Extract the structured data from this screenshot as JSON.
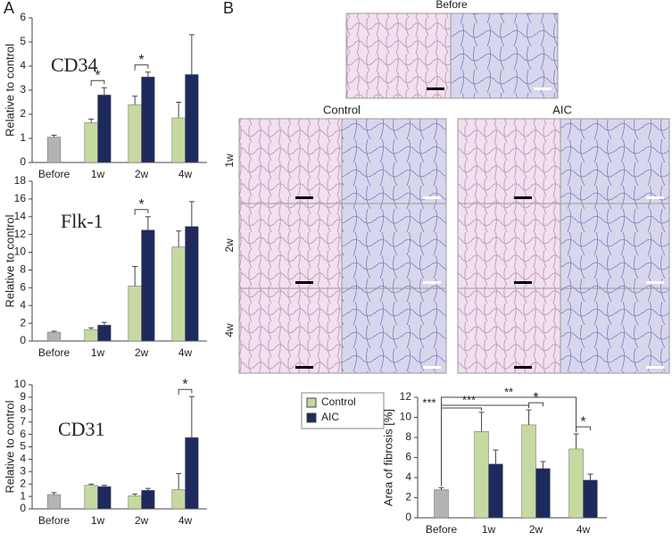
{
  "panel_labels": [
    "A",
    "B"
  ],
  "image_labels": {
    "before": "Before",
    "control": "Control",
    "aic": "AIC",
    "weeks": [
      "1w",
      "2w",
      "4w"
    ]
  },
  "chart_data": [
    {
      "type": "bar",
      "title": "CD34",
      "ylabel": "Relative to control",
      "legend": false,
      "categories": [
        "Before",
        "1w",
        "2w",
        "4w"
      ],
      "reference": {
        "color": "#b3b3b3",
        "value": 1.05,
        "error": 0.08
      },
      "series": [
        {
          "name": "Control",
          "color": "#c6d9a0",
          "values": [
            null,
            1.65,
            2.4,
            1.85
          ],
          "errors": [
            null,
            0.15,
            0.35,
            0.65
          ]
        },
        {
          "name": "AIC",
          "color": "#1f2a5c",
          "values": [
            null,
            2.8,
            3.55,
            3.65
          ],
          "errors": [
            null,
            0.3,
            0.2,
            1.65
          ]
        }
      ],
      "ylim": [
        0,
        6
      ],
      "yticks": [
        0,
        1,
        2,
        3,
        4,
        5,
        6
      ],
      "annotations": [
        {
          "label": "*",
          "category": "1w"
        },
        {
          "label": "*",
          "category": "2w"
        }
      ]
    },
    {
      "type": "bar",
      "title": "Flk-1",
      "ylabel": "Relative to control",
      "legend": false,
      "categories": [
        "Before",
        "1w",
        "2w",
        "4w"
      ],
      "reference": {
        "color": "#b3b3b3",
        "value": 1.0,
        "error": 0.1
      },
      "series": [
        {
          "name": "Control",
          "color": "#c6d9a0",
          "values": [
            null,
            1.3,
            6.2,
            10.6
          ],
          "errors": [
            null,
            0.2,
            2.2,
            1.8
          ]
        },
        {
          "name": "AIC",
          "color": "#1f2a5c",
          "values": [
            null,
            1.8,
            12.5,
            12.9
          ],
          "errors": [
            null,
            0.3,
            1.5,
            2.8
          ]
        }
      ],
      "ylim": [
        0,
        18
      ],
      "yticks": [
        0,
        2,
        4,
        6,
        8,
        10,
        12,
        14,
        16,
        18
      ],
      "annotations": [
        {
          "label": "*",
          "category": "2w"
        }
      ]
    },
    {
      "type": "bar",
      "title": "CD31",
      "ylabel": "Relative to control",
      "legend": false,
      "categories": [
        "Before",
        "1w",
        "2w",
        "4w"
      ],
      "reference": {
        "color": "#b3b3b3",
        "value": 1.15,
        "error": 0.15
      },
      "series": [
        {
          "name": "Control",
          "color": "#c6d9a0",
          "values": [
            null,
            1.9,
            1.05,
            1.55
          ],
          "errors": [
            null,
            0.1,
            0.15,
            1.3
          ]
        },
        {
          "name": "AIC",
          "color": "#1f2a5c",
          "values": [
            null,
            1.8,
            1.5,
            5.75
          ],
          "errors": [
            null,
            0.1,
            0.15,
            3.3
          ]
        }
      ],
      "ylim": [
        0,
        10
      ],
      "yticks": [
        0,
        1,
        2,
        3,
        4,
        5,
        6,
        7,
        8,
        9,
        10
      ],
      "annotations": [
        {
          "label": "*",
          "category": "4w"
        }
      ]
    },
    {
      "type": "bar",
      "ylabel": "Area of  fibrosis [%]",
      "legend": true,
      "categories": [
        "Before",
        "1w",
        "2w",
        "4w"
      ],
      "reference": {
        "color": "#b3b3b3",
        "value": 2.8,
        "error": 0.2
      },
      "series": [
        {
          "name": "Control",
          "color": "#c6d9a0",
          "values": [
            null,
            8.6,
            9.25,
            6.85
          ],
          "errors": [
            null,
            1.9,
            1.5,
            1.5
          ]
        },
        {
          "name": "AIC",
          "color": "#1f2a5c",
          "values": [
            null,
            5.35,
            4.9,
            3.75
          ],
          "errors": [
            null,
            1.4,
            0.7,
            0.6
          ]
        }
      ],
      "ylim": [
        0,
        12
      ],
      "yticks": [
        0,
        2,
        4,
        6,
        8,
        10,
        12
      ],
      "annotations": [
        {
          "label": "*",
          "category": "2w"
        },
        {
          "label": "*",
          "category": "4w"
        },
        {
          "label": "***",
          "from": "Before",
          "to": "1w"
        },
        {
          "label": "***",
          "from": "Before",
          "to": "2w"
        },
        {
          "label": "**",
          "from": "Before",
          "to": "4w"
        }
      ]
    }
  ]
}
